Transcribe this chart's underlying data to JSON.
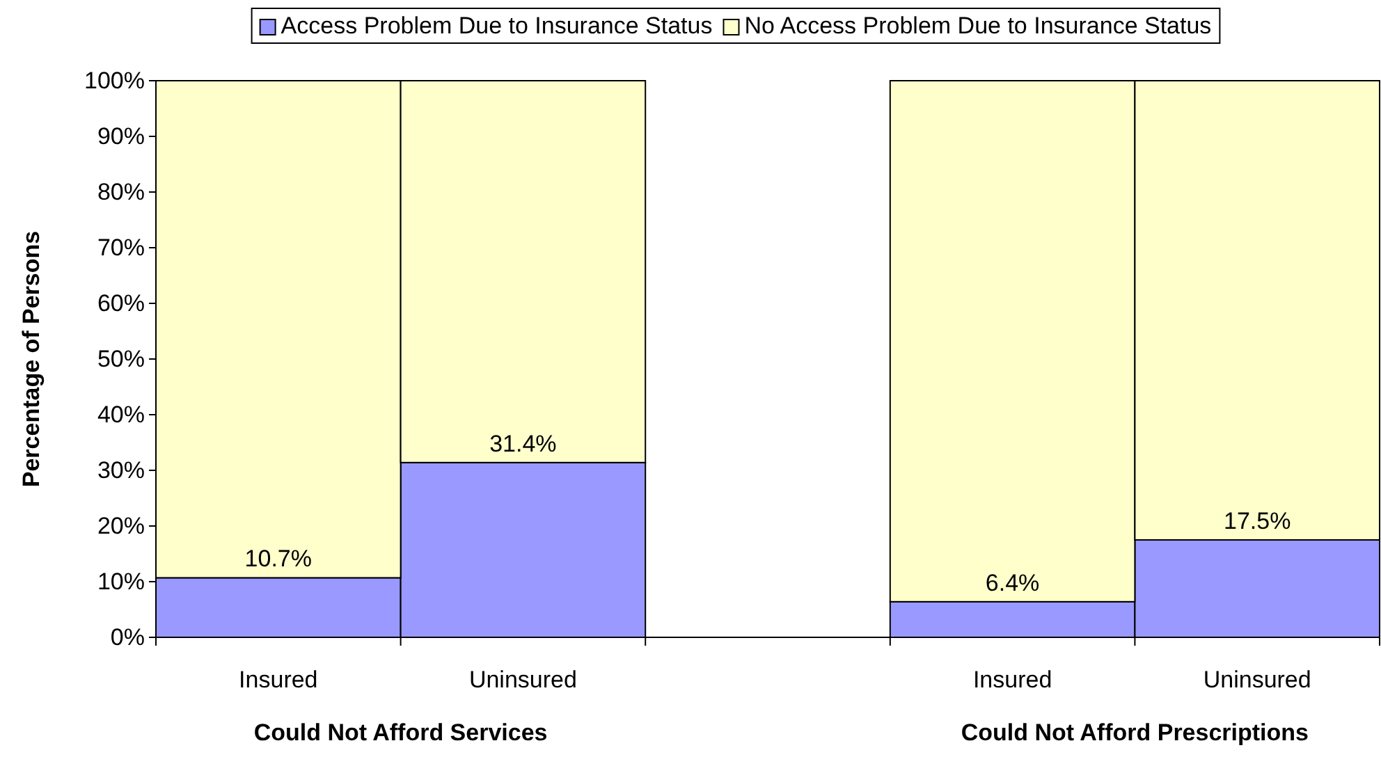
{
  "chart_data": {
    "type": "bar",
    "stacked": true,
    "ylabel": "Percentage of Persons",
    "categories": [
      "Insured",
      "Uninsured",
      null,
      "Insured",
      "Uninsured"
    ],
    "series": [
      {
        "name": "Access Problem Due to Insurance Status",
        "color": "#9999ff",
        "values": [
          10.7,
          31.4,
          null,
          6.4,
          17.5
        ],
        "value_labels": [
          "10.7%",
          "31.4%",
          null,
          "6.4%",
          "17.5%"
        ]
      },
      {
        "name": "No Access Problem Due to Insurance Status",
        "color": "#ffffcc",
        "values": [
          89.3,
          68.6,
          null,
          93.6,
          82.5
        ]
      }
    ],
    "ylim": [
      0,
      100
    ],
    "yticks": [
      {
        "value": 0,
        "label": "0%"
      },
      {
        "value": 10,
        "label": "10%"
      },
      {
        "value": 20,
        "label": "20%"
      },
      {
        "value": 30,
        "label": "30%"
      },
      {
        "value": 40,
        "label": "40%"
      },
      {
        "value": 50,
        "label": "50%"
      },
      {
        "value": 60,
        "label": "60%"
      },
      {
        "value": 70,
        "label": "70%"
      },
      {
        "value": 80,
        "label": "80%"
      },
      {
        "value": 90,
        "label": "90%"
      },
      {
        "value": 100,
        "label": "100%"
      }
    ],
    "annotations": [
      "Could Not Afford Services",
      "Could Not Afford Prescriptions"
    ],
    "legend": "top",
    "grid": false
  }
}
